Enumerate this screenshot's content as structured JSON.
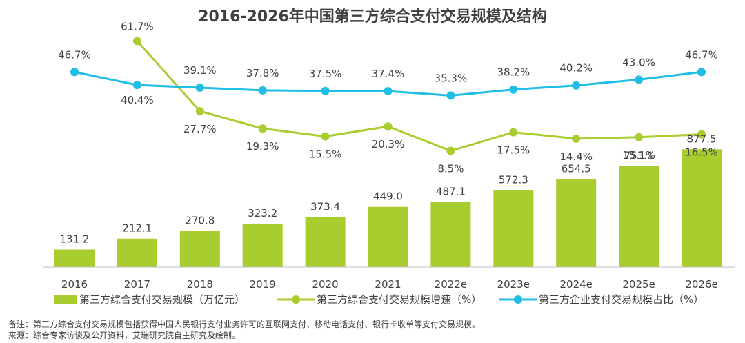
{
  "chart_data": {
    "type": "bar",
    "title": "2016-2026年中国第三方综合支付交易规模及结构",
    "categories": [
      "2016",
      "2017",
      "2018",
      "2019",
      "2020",
      "2021",
      "2022e",
      "2023e",
      "2024e",
      "2025e",
      "2026e"
    ],
    "series": [
      {
        "name": "第三方综合支付交易规模（万亿元）",
        "type": "bar",
        "values": [
          131.2,
          212.1,
          270.8,
          323.2,
          373.4,
          449.0,
          487.1,
          572.3,
          654.5,
          753.1,
          877.5
        ],
        "labels": [
          "131.2",
          "212.1",
          "270.8",
          "323.2",
          "373.4",
          "449.0",
          "487.1",
          "572.3",
          "654.5",
          "753.1",
          "877.5"
        ]
      },
      {
        "name": "第三方综合支付交易规模增速（%）",
        "type": "line",
        "values": [
          null,
          61.7,
          27.7,
          19.3,
          15.5,
          20.3,
          8.5,
          17.5,
          14.4,
          15.1,
          16.5
        ],
        "labels": [
          "",
          "61.7%",
          "27.7%",
          "19.3%",
          "15.5%",
          "20.3%",
          "8.5%",
          "17.5%",
          "14.4%",
          "15.1%",
          "16.5%"
        ]
      },
      {
        "name": "第三方企业支付交易规模占比（%）",
        "type": "line",
        "values": [
          46.7,
          40.4,
          39.1,
          37.8,
          37.5,
          37.4,
          35.3,
          38.2,
          40.2,
          43.0,
          46.7
        ],
        "labels": [
          "46.7%",
          "40.4%",
          "39.1%",
          "37.8%",
          "37.5%",
          "37.4%",
          "35.3%",
          "38.2%",
          "40.2%",
          "43.0%",
          "46.7%"
        ]
      }
    ],
    "colors": {
      "bar": "#a9cc2f",
      "growth": "#a9cc2f",
      "share": "#20bde6",
      "axis": "#bfbfbf",
      "text": "#404040"
    }
  },
  "notes": {
    "note": "备注：第三方综合支付交易规模包括获得中国人民银行支付业务许可的互联网支付、移动电话支付、银行卡收单等支付交易规模。",
    "source": "来源：综合专家访谈及公开资料，艾瑞研究院自主研究及绘制。"
  }
}
